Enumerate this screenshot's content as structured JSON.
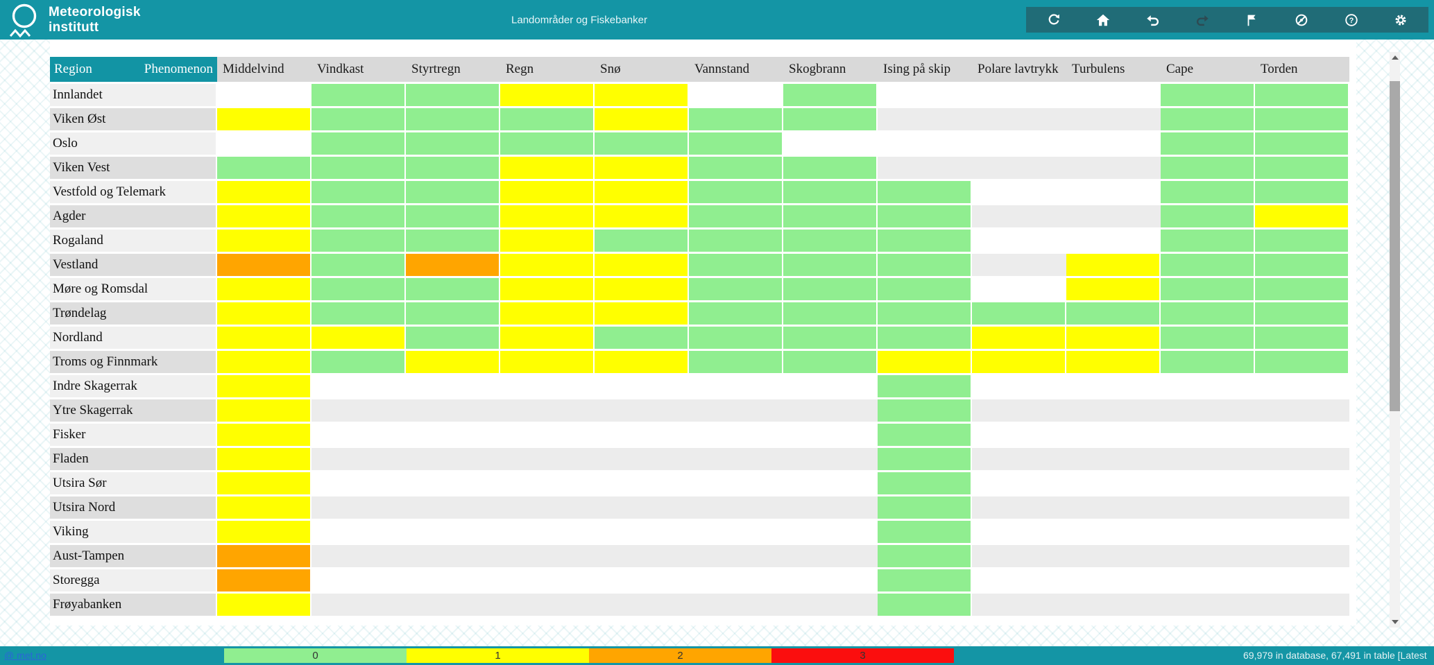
{
  "header": {
    "logo_line1": "Meteorologisk",
    "logo_line2": "institutt",
    "title": "Landområder og Fiskebanker",
    "toolbar_icons": [
      "refresh",
      "home",
      "undo",
      "redo",
      "flag",
      "hide-warnings",
      "help",
      "settings"
    ]
  },
  "table": {
    "region_header": "Region",
    "phenomenon_header": "Phenomenon",
    "columns": [
      "Middelvind",
      "Vindkast",
      "Styrtregn",
      "Regn",
      "Snø",
      "Vannstand",
      "Skogbrann",
      "Ising på skip",
      "Polare lavtrykk",
      "Turbulens",
      "Cape",
      "Torden"
    ],
    "rows": [
      {
        "region": "Innlandet",
        "cells": [
          null,
          0,
          0,
          1,
          1,
          null,
          0,
          null,
          null,
          null,
          0,
          0
        ]
      },
      {
        "region": "Viken Øst",
        "cells": [
          1,
          0,
          0,
          0,
          1,
          0,
          0,
          null,
          null,
          null,
          0,
          0
        ]
      },
      {
        "region": "Oslo",
        "cells": [
          null,
          0,
          0,
          0,
          0,
          0,
          null,
          null,
          null,
          null,
          0,
          0
        ]
      },
      {
        "region": "Viken Vest",
        "cells": [
          0,
          0,
          0,
          1,
          1,
          0,
          0,
          null,
          null,
          null,
          0,
          0
        ]
      },
      {
        "region": "Vestfold og Telemark",
        "cells": [
          1,
          0,
          0,
          1,
          1,
          0,
          0,
          0,
          null,
          null,
          0,
          0
        ]
      },
      {
        "region": "Agder",
        "cells": [
          1,
          0,
          0,
          1,
          1,
          0,
          0,
          0,
          null,
          null,
          0,
          1
        ]
      },
      {
        "region": "Rogaland",
        "cells": [
          1,
          0,
          0,
          1,
          0,
          0,
          0,
          0,
          null,
          null,
          0,
          0
        ]
      },
      {
        "region": "Vestland",
        "cells": [
          2,
          0,
          2,
          1,
          1,
          0,
          0,
          0,
          null,
          1,
          0,
          0
        ]
      },
      {
        "region": "Møre og Romsdal",
        "cells": [
          1,
          0,
          0,
          1,
          1,
          0,
          0,
          0,
          null,
          1,
          0,
          0
        ]
      },
      {
        "region": "Trøndelag",
        "cells": [
          1,
          0,
          0,
          1,
          1,
          0,
          0,
          0,
          0,
          0,
          0,
          0
        ]
      },
      {
        "region": "Nordland",
        "cells": [
          1,
          1,
          0,
          1,
          0,
          0,
          0,
          0,
          1,
          1,
          0,
          0
        ]
      },
      {
        "region": "Troms og Finnmark",
        "cells": [
          1,
          0,
          1,
          1,
          1,
          0,
          0,
          1,
          1,
          1,
          0,
          0
        ]
      },
      {
        "region": "Indre Skagerrak",
        "cells": [
          1,
          null,
          null,
          null,
          null,
          null,
          null,
          0,
          null,
          null,
          null,
          null
        ]
      },
      {
        "region": "Ytre Skagerrak",
        "cells": [
          1,
          null,
          null,
          null,
          null,
          null,
          null,
          0,
          null,
          null,
          null,
          null
        ]
      },
      {
        "region": "Fisker",
        "cells": [
          1,
          null,
          null,
          null,
          null,
          null,
          null,
          0,
          null,
          null,
          null,
          null
        ]
      },
      {
        "region": "Fladen",
        "cells": [
          1,
          null,
          null,
          null,
          null,
          null,
          null,
          0,
          null,
          null,
          null,
          null
        ]
      },
      {
        "region": "Utsira Sør",
        "cells": [
          1,
          null,
          null,
          null,
          null,
          null,
          null,
          0,
          null,
          null,
          null,
          null
        ]
      },
      {
        "region": "Utsira Nord",
        "cells": [
          1,
          null,
          null,
          null,
          null,
          null,
          null,
          0,
          null,
          null,
          null,
          null
        ]
      },
      {
        "region": "Viking",
        "cells": [
          1,
          null,
          null,
          null,
          null,
          null,
          null,
          0,
          null,
          null,
          null,
          null
        ]
      },
      {
        "region": "Aust-Tampen",
        "cells": [
          2,
          null,
          null,
          null,
          null,
          null,
          null,
          0,
          null,
          null,
          null,
          null
        ]
      },
      {
        "region": "Storegga",
        "cells": [
          2,
          null,
          null,
          null,
          null,
          null,
          null,
          0,
          null,
          null,
          null,
          null
        ]
      },
      {
        "region": "Frøyabanken",
        "cells": [
          1,
          null,
          null,
          null,
          null,
          null,
          null,
          0,
          null,
          null,
          null,
          null
        ]
      }
    ]
  },
  "severity_colors": {
    "0": "#90EE90",
    "1": "#FFFF00",
    "2": "#FFA500",
    "3": "#FB0E0E"
  },
  "colors": {
    "accent_teal": "#1495A5",
    "header_gray": "#D9D9D9",
    "link_blue": "#2B65D9"
  },
  "legend": {
    "items": [
      {
        "label": "0",
        "color": "#90EE90"
      },
      {
        "label": "1",
        "color": "#FFFF00"
      },
      {
        "label": "2",
        "color": "#FFA500"
      },
      {
        "label": "3",
        "color": "#FB0E0E"
      }
    ]
  },
  "footer": {
    "link_label": "@ met.no",
    "status_text": "69,979 in database, 67,491 in table [Latest"
  }
}
